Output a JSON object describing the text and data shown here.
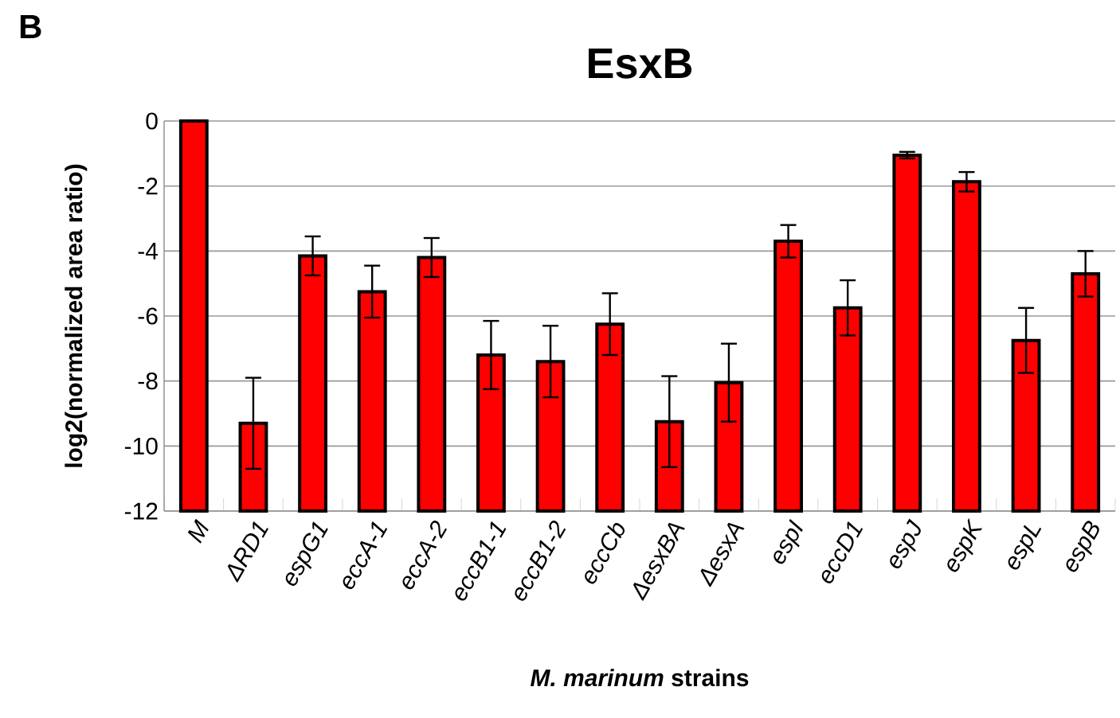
{
  "chart_data": {
    "type": "bar",
    "title": "EsxB",
    "xlabel": "*M. marinum* strains",
    "ylabel": "log2(normalized area ratio)",
    "annotations": [
      "B"
    ],
    "categories": [
      "M",
      "ΔRD1",
      "espG1",
      "eccA-1",
      "eccA-2",
      "eccB1-1",
      "eccB1-2",
      "eccCb",
      "ΔesxBA",
      "ΔesxA",
      "espI",
      "eccD1",
      "espJ",
      "espK",
      "espL",
      "espB"
    ],
    "base": [
      -12,
      -12,
      -12,
      -12,
      -12,
      -12,
      -12,
      -12,
      -12,
      -12,
      -12,
      -12,
      -12,
      -12,
      -12,
      -12
    ],
    "values": [
      12,
      2.7,
      7.85,
      6.75,
      7.8,
      4.8,
      4.6,
      5.75,
      2.75,
      3.95,
      8.3,
      6.25,
      10.95,
      10.13,
      5.25,
      7.3
    ],
    "errors": [
      null,
      1.4,
      0.6,
      0.8,
      0.6,
      1.05,
      1.1,
      0.95,
      1.4,
      1.2,
      0.5,
      0.85,
      0.1,
      0.3,
      1.0,
      0.7
    ],
    "color": "#ff0000",
    "ylim": [
      -12,
      0
    ],
    "yticks": [
      -12,
      -10,
      -8,
      -6,
      -4,
      -2,
      0
    ],
    "grid": "y"
  }
}
